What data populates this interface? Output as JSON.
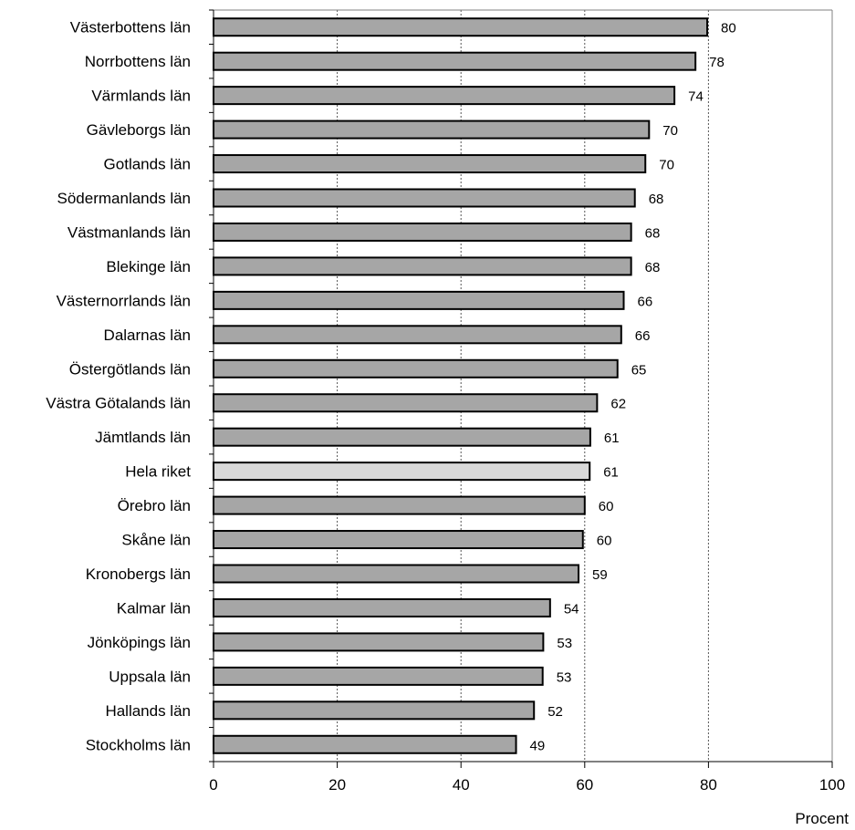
{
  "chart_data": {
    "type": "bar",
    "orientation": "horizontal",
    "categories": [
      "Västerbottens län",
      "Norrbottens län",
      "Värmlands län",
      "Gävleborgs län",
      "Gotlands län",
      "Södermanlands län",
      "Västmanlands län",
      "Blekinge län",
      "Västernorrlands län",
      "Dalarnas län",
      "Östergötlands län",
      "Västra Götalands län",
      "Jämtlands län",
      "Hela riket",
      "Örebro län",
      "Skåne län",
      "Kronobergs län",
      "Kalmar län",
      "Jönköpings län",
      "Uppsala län",
      "Hallands län",
      "Stockholms län"
    ],
    "values": [
      79.8,
      77.9,
      74.5,
      70.4,
      69.8,
      68.1,
      67.5,
      67.5,
      66.3,
      65.9,
      65.3,
      62.0,
      60.9,
      60.8,
      60.0,
      59.7,
      59.0,
      54.4,
      53.3,
      53.2,
      51.8,
      48.9
    ],
    "data_labels": [
      "80",
      "78",
      "74",
      "70",
      "70",
      "68",
      "68",
      "68",
      "66",
      "66",
      "65",
      "62",
      "61",
      "61",
      "60",
      "60",
      "59",
      "54",
      "53",
      "53",
      "52",
      "49"
    ],
    "highlight_category": "Hela riket",
    "xlim": [
      0,
      100
    ],
    "x_ticks": [
      0,
      20,
      40,
      60,
      80,
      100
    ],
    "x_tick_labels": [
      "0",
      "20",
      "40",
      "60",
      "80",
      "100"
    ],
    "xlabel": "Procent",
    "ylabel": "",
    "title": "",
    "grid": "vertical dotted",
    "colors": {
      "bar": "#a6a6a6",
      "highlight_bar": "#d9d9d9",
      "bar_edge": "#000000",
      "frame": "#808080"
    }
  }
}
